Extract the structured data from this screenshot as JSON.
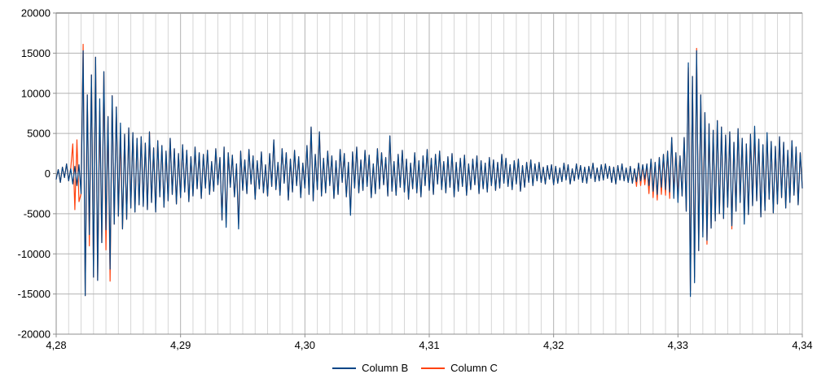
{
  "chart_data": {
    "type": "line",
    "title": "",
    "background": "#ffffff",
    "legend_position": "bottom",
    "grid": {
      "major_color": "#b3b3b3",
      "minor_color": "#d6d6d6",
      "axis_color": "#8f8f8f",
      "top_border_color": "#a6a6a6"
    },
    "x_axis": {
      "min": 4.28,
      "max": 4.34,
      "major_step": 0.01,
      "minor_step": 0.001,
      "tick_labels": [
        "4,28",
        "4,29",
        "4,30",
        "4,31",
        "4,32",
        "4,33",
        "4,34"
      ]
    },
    "y_axis": {
      "min": -20000,
      "max": 20000,
      "major_step": 5000,
      "tick_labels": [
        "20000",
        "15000",
        "10000",
        "5000",
        "0",
        "-5000",
        "-10000",
        "-15000",
        "-20000"
      ]
    },
    "series": [
      {
        "name": "Column B",
        "color": "#004586",
        "values": [
          -700,
          500,
          -1100,
          800,
          -500,
          1200,
          -900,
          600,
          -1300,
          900,
          -1500,
          1100,
          -2500,
          15300,
          -15200,
          9800,
          -7600,
          12300,
          -12900,
          14500,
          -13300,
          9300,
          -8600,
          12700,
          -7000,
          7100,
          -11900,
          9700,
          -6300,
          8300,
          -5300,
          6300,
          -6900,
          4900,
          -5700,
          5700,
          -4300,
          5100,
          -4800,
          4400,
          -3900,
          4600,
          -4100,
          3800,
          -4500,
          5200,
          -3600,
          3200,
          -4800,
          4100,
          -2900,
          3500,
          -4200,
          2800,
          -3400,
          4400,
          -2600,
          3100,
          -3800,
          2500,
          -3000,
          3600,
          -2300,
          2900,
          -3500,
          2100,
          -2800,
          3300,
          -1900,
          2600,
          -3100,
          2400,
          -1800,
          2900,
          -2600,
          1500,
          -2200,
          3100,
          -1400,
          2000,
          -5800,
          3300,
          -6700,
          2600,
          -1700,
          2300,
          -2900,
          1200,
          -6900,
          2800,
          -2100,
          1700,
          -2500,
          3000,
          -1300,
          2200,
          -3200,
          1600,
          -1900,
          2700,
          -2400,
          1100,
          -2800,
          2500,
          -1600,
          4200,
          -2000,
          1400,
          -2700,
          3100,
          -1200,
          2600,
          -3300,
          1800,
          -2300,
          2900,
          -1500,
          2100,
          -3000,
          1300,
          -1800,
          3500,
          -2600,
          5800,
          -3400,
          2400,
          -2000,
          5200,
          -2800,
          1900,
          -2400,
          2800,
          -1500,
          2200,
          -3100,
          1600,
          -2600,
          3000,
          -1100,
          2500,
          -2900,
          1400,
          -5200,
          2700,
          -1800,
          3300,
          -2400,
          1700,
          -2100,
          2900,
          -1600,
          2300,
          -3000,
          1200,
          -2500,
          3100,
          -1900,
          2600,
          -1400,
          2000,
          -2800,
          4700,
          -2200,
          1500,
          -2700,
          2400,
          -1700,
          2900,
          -2300,
          1800,
          -3200,
          1300,
          -1900,
          2600,
          -2400,
          1600,
          -2900,
          2200,
          -1500,
          3000,
          -2100,
          1900,
          -2600,
          2400,
          -1300,
          2800,
          -2000,
          1500,
          -2400,
          2100,
          -1700,
          2500,
          -2900,
          1400,
          -2200,
          1900,
          -1600,
          2300,
          -2700,
          1200,
          -2000,
          1800,
          -1400,
          2200,
          -2500,
          1600,
          -1900,
          1300,
          -2300,
          2000,
          -1500,
          1700,
          -2100,
          1400,
          -1800,
          2400,
          -1200,
          1900,
          -1600,
          1100,
          -2000,
          1600,
          -1300,
          1800,
          -2200,
          1000,
          -1700,
          1400,
          -1100,
          1700,
          -1500,
          1200,
          -900,
          1400,
          -1100,
          800,
          -1300,
          1000,
          -700,
          1100,
          -1400,
          900,
          -1200,
          700,
          -1000,
          1300,
          -800,
          1100,
          -1300,
          600,
          -900,
          1200,
          -700,
          1000,
          -1100,
          800,
          -1200,
          900,
          -600,
          1300,
          -1000,
          700,
          -900,
          1100,
          -800,
          1200,
          -600,
          900,
          -1100,
          800,
          -1300,
          1000,
          -800,
          1200,
          -900,
          700,
          -1100,
          900,
          -1200,
          600,
          -1000,
          1300,
          -900,
          1100,
          -700,
          1200,
          -1500,
          1800,
          -2200,
          1400,
          -2600,
          2000,
          -1700,
          2400,
          -2000,
          2800,
          -2300,
          4500,
          -3100,
          2600,
          -3600,
          2200,
          -2800,
          4500,
          -4700,
          13800,
          -15300,
          12100,
          -13600,
          15300,
          -9600,
          9800,
          -7900,
          7600,
          -8300,
          6200,
          -6800,
          5400,
          -5900,
          6600,
          -5000,
          5800,
          -5600,
          4800,
          -4200,
          5200,
          -6500,
          3900,
          -4700,
          5600,
          -3600,
          4400,
          -6300,
          3700,
          -5100,
          4900,
          -4000,
          5900,
          -3400,
          4300,
          -5400,
          3600,
          -4600,
          5100,
          -3200,
          4000,
          -4900,
          3400,
          -3800,
          4600,
          -3000,
          3900,
          -4300,
          2900,
          -3600,
          4100,
          -2700,
          3300,
          -3900,
          2600,
          -1800
        ]
      },
      {
        "name": "Column C",
        "color": "#ff420e",
        "base_series": 0,
        "overrides": {
          "8": 3700,
          "9": -4500,
          "10": 4200,
          "11": -3500,
          "13": 16100,
          "16": -9000,
          "21": 7800,
          "24": -9500,
          "26": -13400,
          "31": 4500,
          "82": -6200,
          "88": -6300,
          "142": -4800,
          "280": -1600,
          "282": -1500,
          "284": -1400,
          "286": -2500,
          "288": -3000,
          "290": -3300,
          "292": -2600,
          "294": -2700,
          "296": -3100,
          "298": -2300,
          "300": -2800,
          "305": 13200,
          "306": -14600,
          "308": -12900,
          "309": 15600,
          "312": -7200,
          "314": -8800,
          "326": -6900,
          "332": -5800,
          "337": 5200,
          "343": 4700
        }
      }
    ]
  }
}
